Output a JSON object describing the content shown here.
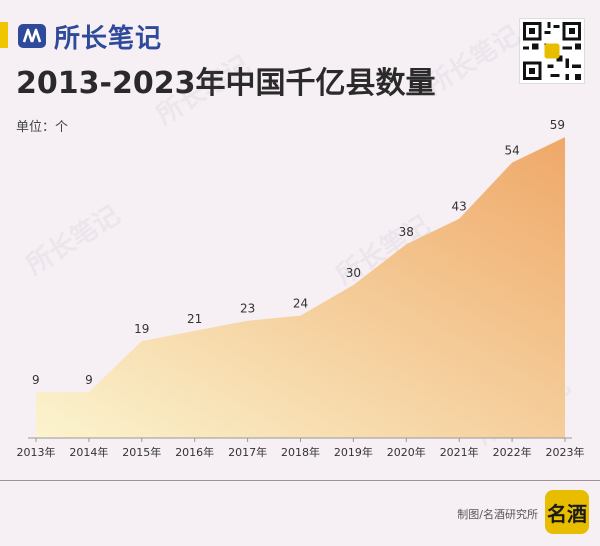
{
  "brand": {
    "name": "所长笔记",
    "icon": "brand-logo-icon",
    "color": "#2e4a9a",
    "accent": "#f0c600"
  },
  "title": "2013-2023年中国千亿县数量",
  "unit_label": "单位：个",
  "credit": "制图/名酒研究所",
  "badge_text": "名酒",
  "qr_icon": "qr-code-icon",
  "colors": {
    "area_top": "#efa868",
    "area_bottom": "#fbf4cf",
    "axis": "#999999",
    "label": "#333333"
  },
  "chart_data": {
    "type": "area",
    "title": "2013-2023年中国千亿县数量",
    "xlabel": "",
    "ylabel": "单位：个",
    "categories": [
      "2013年",
      "2014年",
      "2015年",
      "2016年",
      "2017年",
      "2018年",
      "2019年",
      "2020年",
      "2021年",
      "2022年",
      "2023年"
    ],
    "values": [
      9,
      9,
      19,
      21,
      23,
      24,
      30,
      38,
      43,
      54,
      59
    ],
    "ylim": [
      0,
      60
    ],
    "grid": false,
    "legend": "none"
  }
}
